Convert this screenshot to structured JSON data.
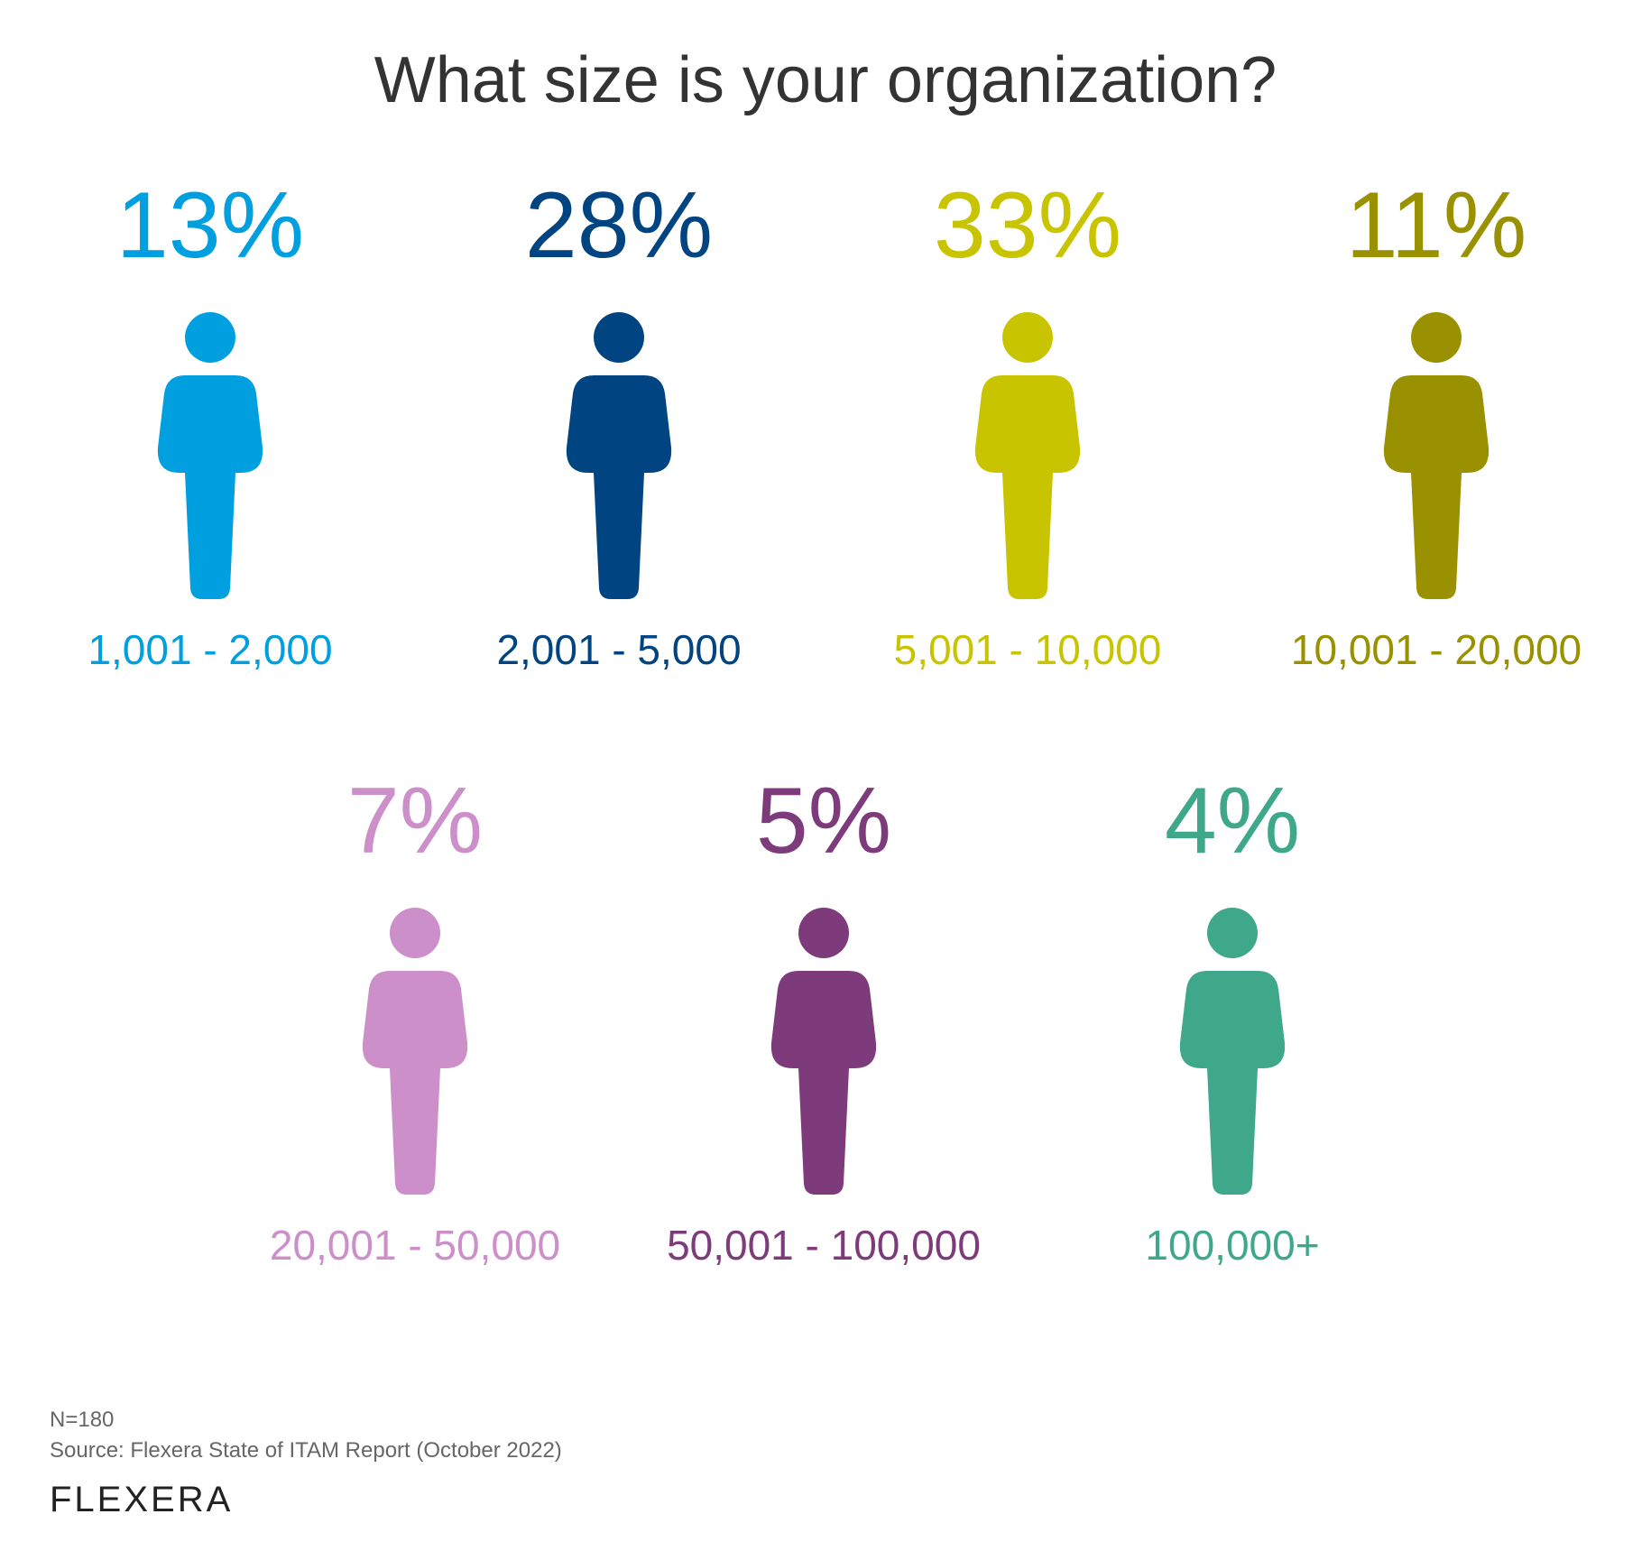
{
  "title": "What size is your organization?",
  "chart_data": {
    "type": "pictogram",
    "title": "What size is your organization?",
    "categories": [
      "1,001 - 2,000",
      "2,001 - 5,000",
      "5,001 - 10,000",
      "10,001 - 20,000",
      "20,001 - 50,000",
      "50,001 - 100,000",
      "100,000+"
    ],
    "values": [
      13,
      28,
      33,
      11,
      7,
      5,
      4
    ],
    "value_labels": [
      "13%",
      "28%",
      "33%",
      "11%",
      "7%",
      "5%",
      "4%"
    ],
    "colors": [
      "#009fdf",
      "#004481",
      "#c9c400",
      "#9a9100",
      "#cc8fca",
      "#7e3b7b",
      "#3fa78a"
    ]
  },
  "footnotes": {
    "n": "N=180",
    "source": "Source: Flexera State of ITAM Report (October 2022)"
  },
  "logo": "FLEXERA"
}
